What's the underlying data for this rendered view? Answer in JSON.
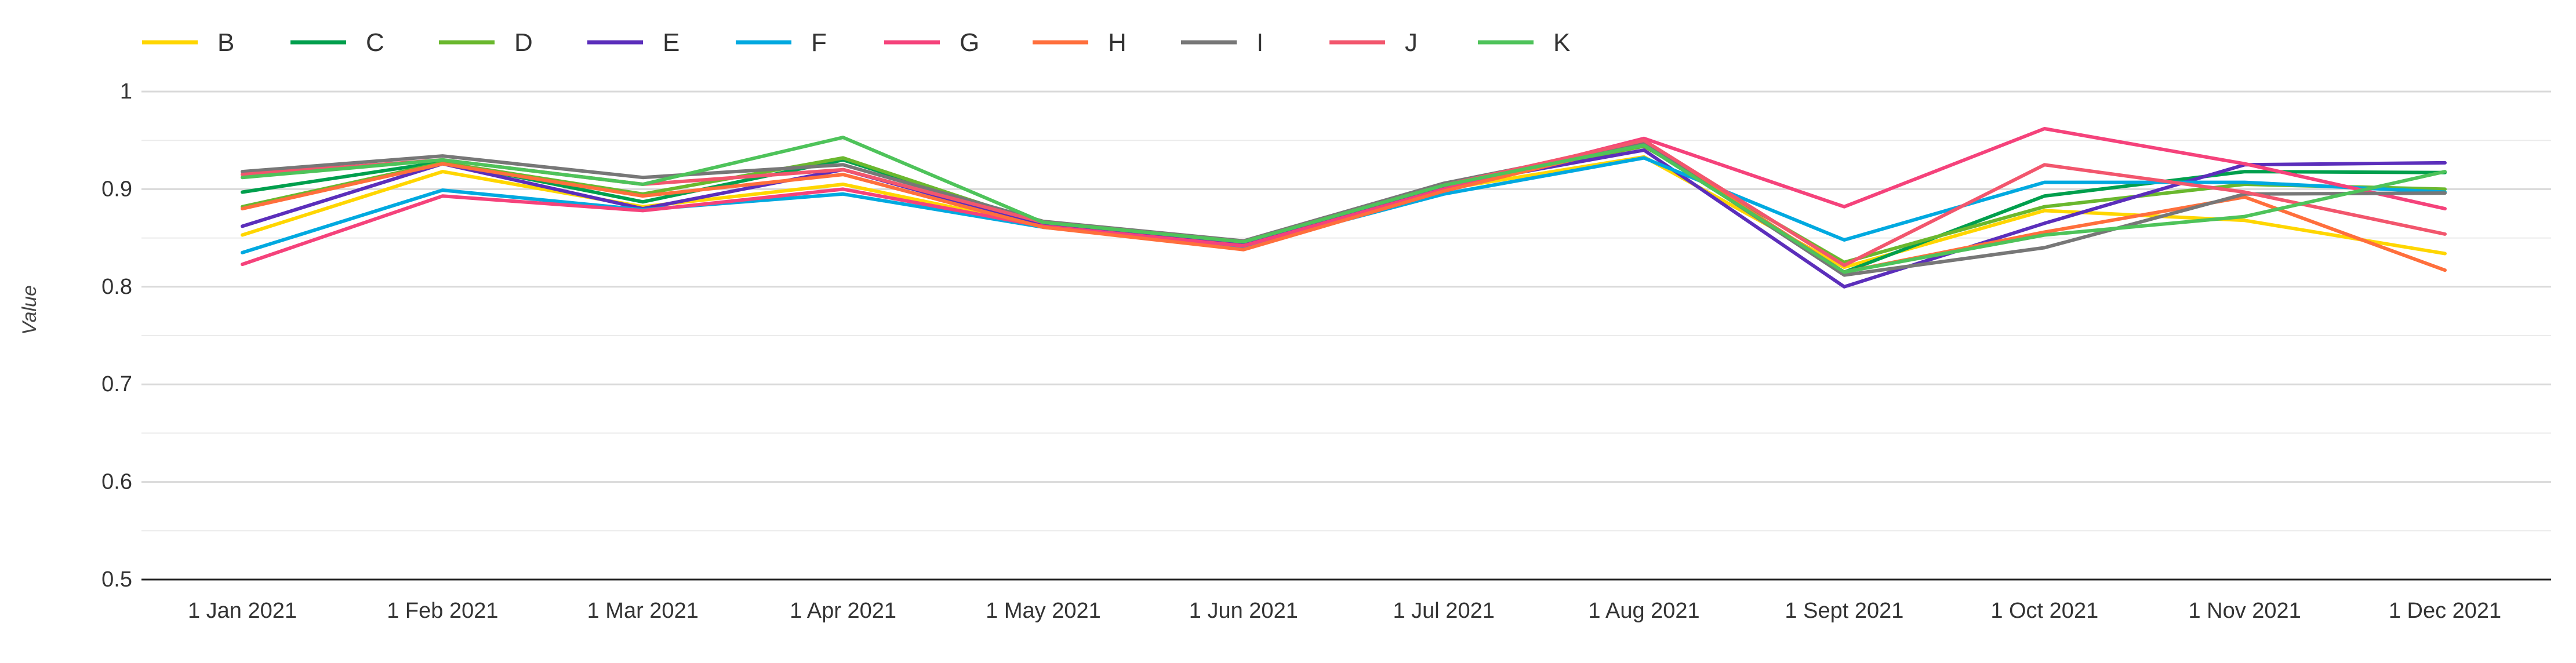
{
  "chart_data": {
    "type": "line",
    "ylabel": "Value",
    "xlabel": "",
    "ylim": [
      0.5,
      1
    ],
    "yticks": [
      0.5,
      0.6,
      0.7,
      0.8,
      0.9,
      1
    ],
    "ytick_labels": [
      "0.5",
      "0.6",
      "0.7",
      "0.8",
      "0.9",
      "1"
    ],
    "grid": true,
    "legend_position": "top-left",
    "categories": [
      "1 Jan 2021",
      "1 Feb 2021",
      "1 Mar 2021",
      "1 Apr 2021",
      "1 May 2021",
      "1 Jun 2021",
      "1 Jul 2021",
      "1 Aug 2021",
      "1 Sept 2021",
      "1 Oct 2021",
      "1 Nov 2021",
      "1 Dec 2021"
    ],
    "series": [
      {
        "name": "B",
        "color": "#FFD600",
        "values": [
          0.853,
          0.918,
          0.882,
          0.905,
          0.862,
          0.84,
          0.9,
          0.933,
          0.82,
          0.878,
          0.868,
          0.834
        ]
      },
      {
        "name": "C",
        "color": "#009F4D",
        "values": [
          0.897,
          0.928,
          0.887,
          0.93,
          0.865,
          0.845,
          0.905,
          0.945,
          0.815,
          0.893,
          0.918,
          0.917
        ]
      },
      {
        "name": "D",
        "color": "#6AB82E",
        "values": [
          0.882,
          0.927,
          0.895,
          0.932,
          0.864,
          0.844,
          0.904,
          0.944,
          0.825,
          0.882,
          0.905,
          0.9
        ]
      },
      {
        "name": "E",
        "color": "#5B2EBB",
        "values": [
          0.862,
          0.926,
          0.88,
          0.92,
          0.863,
          0.843,
          0.903,
          0.94,
          0.8,
          0.865,
          0.925,
          0.927
        ]
      },
      {
        "name": "F",
        "color": "#00A9E0",
        "values": [
          0.835,
          0.899,
          0.879,
          0.895,
          0.861,
          0.841,
          0.895,
          0.932,
          0.848,
          0.907,
          0.907,
          0.897
        ]
      },
      {
        "name": "G",
        "color": "#F5427B",
        "values": [
          0.823,
          0.893,
          0.878,
          0.9,
          0.862,
          0.842,
          0.9,
          0.952,
          0.882,
          0.962,
          0.926,
          0.88
        ]
      },
      {
        "name": "H",
        "color": "#FF6F3C",
        "values": [
          0.88,
          0.926,
          0.893,
          0.915,
          0.861,
          0.838,
          0.898,
          0.948,
          0.815,
          0.856,
          0.892,
          0.817
        ]
      },
      {
        "name": "I",
        "color": "#777777",
        "values": [
          0.918,
          0.934,
          0.912,
          0.925,
          0.867,
          0.847,
          0.906,
          0.947,
          0.812,
          0.84,
          0.895,
          0.896
        ]
      },
      {
        "name": "J",
        "color": "#F2566D",
        "values": [
          0.915,
          0.93,
          0.905,
          0.92,
          0.866,
          0.846,
          0.904,
          0.95,
          0.822,
          0.925,
          0.897,
          0.854
        ]
      },
      {
        "name": "K",
        "color": "#4EC35A",
        "values": [
          0.912,
          0.93,
          0.905,
          0.953,
          0.866,
          0.846,
          0.904,
          0.945,
          0.815,
          0.853,
          0.872,
          0.918
        ]
      }
    ]
  }
}
